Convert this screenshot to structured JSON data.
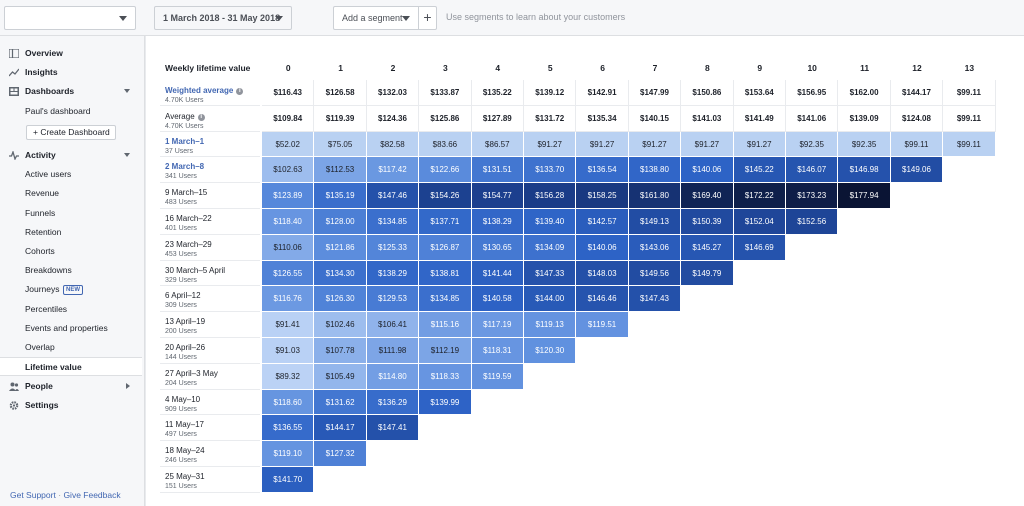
{
  "topbar": {
    "app_selector_value": "",
    "date_range": "1 March 2018 - 31 May 2018",
    "add_segment": "Add a segment",
    "add_segment_plus": "+",
    "segment_hint": "Use segments to learn about your customers"
  },
  "sidebar": {
    "overview": "Overview",
    "insights": "Insights",
    "dashboards": "Dashboards",
    "pauls_dashboard": "Paul's dashboard",
    "create_dashboard": "+ Create Dashboard",
    "activity": "Activity",
    "active_users": "Active users",
    "revenue": "Revenue",
    "funnels": "Funnels",
    "retention": "Retention",
    "cohorts": "Cohorts",
    "breakdowns": "Breakdowns",
    "journeys": "Journeys",
    "journeys_badge": "NEW",
    "percentiles": "Percentiles",
    "events_properties": "Events and properties",
    "overlap": "Overlap",
    "lifetime_value": "Lifetime value",
    "people": "People",
    "settings": "Settings",
    "get_support": "Get Support",
    "separator": "·",
    "give_feedback": "Give Feedback"
  },
  "table": {
    "corner_label": "Weekly lifetime value",
    "weeks": [
      "0",
      "1",
      "2",
      "3",
      "4",
      "5",
      "6",
      "7",
      "8",
      "9",
      "10",
      "11",
      "12",
      "13"
    ],
    "weighted": {
      "label": "Weighted average",
      "users": "4.70K Users",
      "values": [
        "$116.43",
        "$126.58",
        "$132.03",
        "$133.87",
        "$135.22",
        "$139.12",
        "$142.91",
        "$147.99",
        "$150.86",
        "$153.64",
        "$156.95",
        "$162.00",
        "$144.17",
        "$99.11"
      ]
    },
    "average": {
      "label": "Average",
      "users": "4.70K Users",
      "values": [
        "$109.84",
        "$119.39",
        "$124.36",
        "$125.86",
        "$127.89",
        "$131.72",
        "$135.34",
        "$140.15",
        "$141.03",
        "$141.49",
        "$141.06",
        "$139.09",
        "$124.08",
        "$99.11"
      ]
    },
    "cohorts": [
      {
        "label": "1 March–1",
        "users": "37 Users",
        "values": [
          "$52.02",
          "$75.05",
          "$82.58",
          "$83.66",
          "$86.57",
          "$91.27",
          "$91.27",
          "$91.27",
          "$91.27",
          "$91.27",
          "$92.35",
          "$92.35",
          "$99.11",
          "$99.11"
        ]
      },
      {
        "label": "2 March–8",
        "users": "341 Users",
        "values": [
          "$102.63",
          "$112.53",
          "$117.42",
          "$122.66",
          "$131.51",
          "$133.70",
          "$136.54",
          "$138.80",
          "$140.06",
          "$145.22",
          "$146.07",
          "$146.98",
          "$149.06"
        ]
      },
      {
        "label": "9 March–15",
        "users": "483 Users",
        "values": [
          "$123.89",
          "$135.19",
          "$147.46",
          "$154.26",
          "$154.77",
          "$156.28",
          "$158.25",
          "$161.80",
          "$169.40",
          "$172.22",
          "$173.23",
          "$177.94"
        ]
      },
      {
        "label": "16 March–22",
        "users": "401 Users",
        "values": [
          "$118.40",
          "$128.00",
          "$134.85",
          "$137.71",
          "$138.29",
          "$139.40",
          "$142.57",
          "$149.13",
          "$150.39",
          "$152.04",
          "$152.56"
        ]
      },
      {
        "label": "23 March–29",
        "users": "453 Users",
        "values": [
          "$110.06",
          "$121.86",
          "$125.33",
          "$126.87",
          "$130.65",
          "$134.09",
          "$140.06",
          "$143.06",
          "$145.27",
          "$146.69"
        ]
      },
      {
        "label": "30 March–5 April",
        "users": "329 Users",
        "values": [
          "$126.55",
          "$134.30",
          "$138.29",
          "$138.81",
          "$141.44",
          "$147.33",
          "$148.03",
          "$149.56",
          "$149.79"
        ]
      },
      {
        "label": "6 April–12",
        "users": "309 Users",
        "values": [
          "$116.76",
          "$126.30",
          "$129.53",
          "$134.85",
          "$140.58",
          "$144.00",
          "$146.46",
          "$147.43"
        ]
      },
      {
        "label": "13 April–19",
        "users": "200 Users",
        "values": [
          "$91.41",
          "$102.46",
          "$106.41",
          "$115.16",
          "$117.19",
          "$119.13",
          "$119.51"
        ]
      },
      {
        "label": "20 April–26",
        "users": "144 Users",
        "values": [
          "$91.03",
          "$107.78",
          "$111.98",
          "$112.19",
          "$118.31",
          "$120.30"
        ]
      },
      {
        "label": "27 April–3 May",
        "users": "204 Users",
        "values": [
          "$89.32",
          "$105.49",
          "$114.80",
          "$118.33",
          "$119.59"
        ]
      },
      {
        "label": "4 May–10",
        "users": "909 Users",
        "values": [
          "$118.60",
          "$131.62",
          "$136.29",
          "$139.99"
        ]
      },
      {
        "label": "11 May–17",
        "users": "497 Users",
        "values": [
          "$136.55",
          "$144.17",
          "$147.41"
        ]
      },
      {
        "label": "18 May–24",
        "users": "246 Users",
        "values": [
          "$119.10",
          "$127.32"
        ]
      },
      {
        "label": "25 May–31",
        "users": "151 Users",
        "values": [
          "$141.70"
        ]
      }
    ]
  },
  "colors": {
    "accent": "#4267b2",
    "scale_low": "#dbe7fa",
    "scale_high": "#0b1a3a"
  }
}
